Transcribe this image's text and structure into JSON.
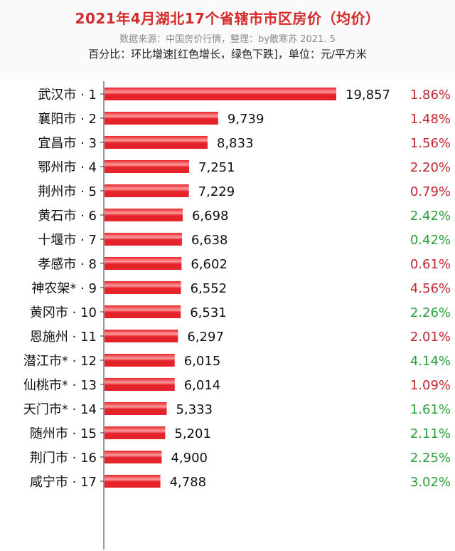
{
  "header": {
    "title": "2021年4月湖北17个省辖市市区房价（均价）",
    "source": "数据来源：中国房价行情，整理：by散寒苏  2021. 5",
    "note": "百分比：环比增速[红色增长，绿色下跌]，单位：元/平方米"
  },
  "colors": {
    "bar": "#e5232b",
    "bar_highlight": "#ff9a9a",
    "pct_red": "#c0282d",
    "pct_green": "#2e9d3a",
    "label": "#111111",
    "axis": "#333333"
  },
  "chart_data": {
    "type": "bar",
    "orientation": "horizontal",
    "title": "2021年4月湖北17个省辖市市区房价（均价）",
    "unit": "元/平方米",
    "categories": [
      "武汉市 · 1",
      "襄阳市 · 2",
      "宜昌市 · 3",
      "鄂州市 · 4",
      "荆州市 · 5",
      "黄石市 · 6",
      "十堰市 · 7",
      "孝感市 · 8",
      "神农架* · 9",
      "黄冈市 · 10",
      "恩施州 · 11",
      "潜江市* · 12",
      "仙桃市* · 13",
      "天门市* · 14",
      "随州市 · 15",
      "荆门市 · 16",
      "咸宁市 · 17"
    ],
    "values": [
      19857,
      9739,
      8833,
      7251,
      7229,
      6698,
      6638,
      6602,
      6552,
      6531,
      6297,
      6015,
      6014,
      5333,
      5201,
      4900,
      4788
    ],
    "value_labels": [
      "19,857",
      "9,739",
      "8,833",
      "7,251",
      "7,229",
      "6,698",
      "6,638",
      "6,602",
      "6,552",
      "6,531",
      "6,297",
      "6,015",
      "6,014",
      "5,333",
      "5,201",
      "4,900",
      "4,788"
    ],
    "mom_change": [
      "1.86%",
      "1.48%",
      "1.56%",
      "2.20%",
      "0.79%",
      "2.42%",
      "0.42%",
      "0.61%",
      "4.56%",
      "2.26%",
      "2.01%",
      "4.14%",
      "1.09%",
      "1.61%",
      "2.11%",
      "2.25%",
      "3.02%"
    ],
    "mom_color": [
      "red",
      "red",
      "red",
      "red",
      "red",
      "green",
      "green",
      "red",
      "red",
      "green",
      "red",
      "green",
      "red",
      "green",
      "green",
      "green",
      "green"
    ],
    "xlim": [
      0,
      19857
    ],
    "grid": false,
    "legend": "none"
  }
}
